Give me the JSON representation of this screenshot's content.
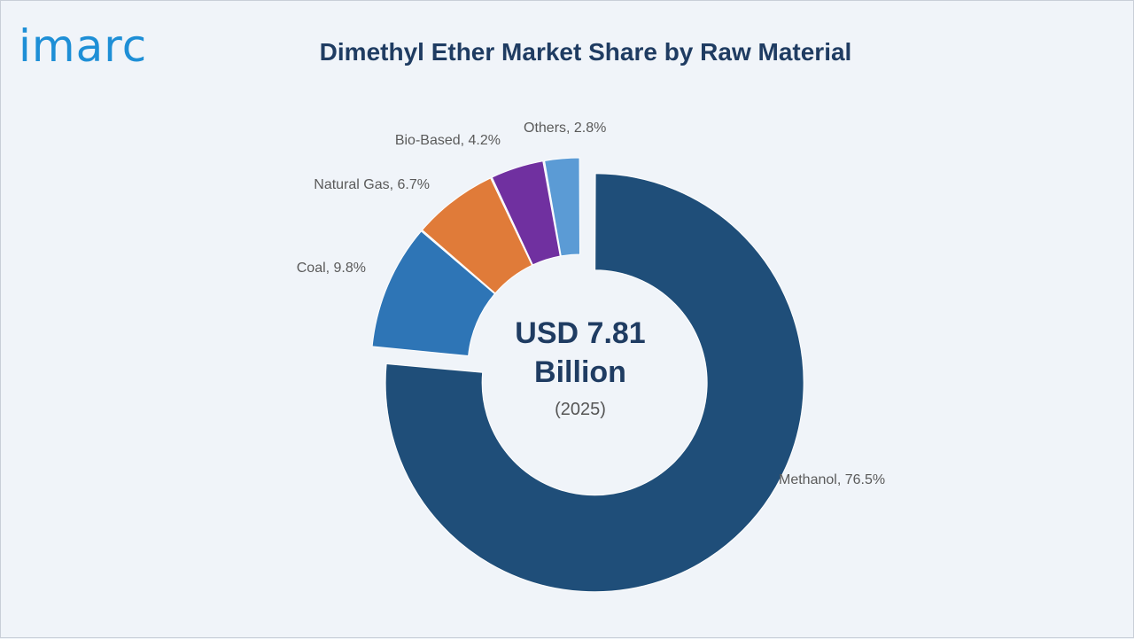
{
  "brand": {
    "logo_text": "imarc"
  },
  "chart_data": {
    "type": "pie",
    "variant": "donut",
    "title": "Dimethyl Ether Market Share by Raw Material",
    "center_label": {
      "value": "USD 7.81",
      "unit": "Billion",
      "year": "(2025)"
    },
    "slices": [
      {
        "name": "Methanol",
        "value": 76.5,
        "label": "Methanol, 76.5%",
        "color": "#1f4e79"
      },
      {
        "name": "Coal",
        "value": 9.8,
        "label": "Coal, 9.8%",
        "color": "#2e75b6"
      },
      {
        "name": "Natural Gas",
        "value": 6.7,
        "label": "Natural Gas, 6.7%",
        "color": "#e07b39"
      },
      {
        "name": "Bio-Based",
        "value": 4.2,
        "label": "Bio-Based, 4.2%",
        "color": "#7030a0"
      },
      {
        "name": "Others",
        "value": 2.8,
        "label": "Others, 2.8%",
        "color": "#5b9bd5"
      }
    ],
    "exploded_slice": "Methanol",
    "legend": "none"
  }
}
